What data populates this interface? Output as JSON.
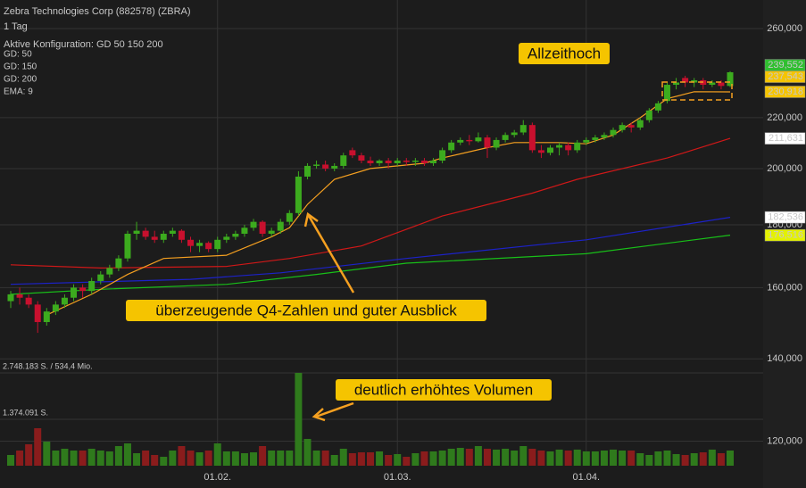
{
  "chart_data": {
    "type": "candlestick",
    "title": "Zebra Technologies Corp (882578) (ZBRA)",
    "interval": "1 Tag",
    "config": "Aktive Konfiguration: GD 50 150 200",
    "log_scale": true,
    "grid": true,
    "up_color": "#3cab1e",
    "down_color": "#c8102e",
    "categories": [
      null,
      null,
      null,
      null,
      null,
      null,
      null,
      null,
      null,
      null,
      null,
      null,
      null,
      null,
      null,
      null,
      null,
      null,
      null,
      null,
      null,
      null,
      null,
      "01.02.",
      null,
      null,
      null,
      null,
      null,
      null,
      null,
      null,
      null,
      null,
      null,
      null,
      null,
      null,
      null,
      null,
      null,
      null,
      null,
      "01.03.",
      null,
      null,
      null,
      null,
      null,
      null,
      null,
      null,
      null,
      null,
      null,
      null,
      null,
      null,
      null,
      null,
      null,
      null,
      null,
      null,
      "01.04.",
      null,
      null,
      null,
      null,
      null,
      null,
      null,
      null,
      null,
      null,
      null,
      null,
      null,
      null,
      null,
      null
    ],
    "open": [
      156,
      158,
      157,
      155,
      150,
      153,
      155,
      157,
      160,
      159,
      162,
      164,
      166,
      169,
      177,
      178,
      176,
      175,
      177,
      178,
      175,
      173,
      174,
      172,
      175,
      176,
      177,
      179,
      181,
      177,
      178,
      181,
      184,
      197,
      201,
      201.5,
      200,
      201,
      207,
      205,
      203,
      202,
      203,
      202,
      203,
      202.5,
      203,
      202,
      203,
      207,
      210,
      211,
      210.5,
      212,
      208,
      211,
      213,
      214,
      217,
      207,
      206,
      208,
      209,
      207,
      210,
      211,
      212,
      213,
      215,
      217,
      216,
      219,
      223,
      227,
      234,
      237,
      235,
      236,
      234,
      235,
      233.5
    ],
    "high": [
      159,
      160,
      158,
      156,
      154,
      156,
      158,
      161,
      161,
      163,
      165,
      167,
      170,
      178,
      181,
      179,
      178,
      178,
      179,
      178.5,
      176,
      175,
      174.5,
      176,
      177,
      178,
      180,
      182,
      181.5,
      179,
      182,
      185,
      199,
      202,
      203,
      203,
      202,
      206,
      208,
      206,
      204.5,
      203.5,
      204,
      204,
      204,
      204,
      204,
      204,
      208,
      211,
      212,
      213,
      214,
      213,
      212,
      214,
      215,
      219,
      218,
      209,
      209,
      210,
      210,
      211,
      212,
      213,
      214,
      216,
      218,
      218,
      220,
      224,
      227,
      235,
      237,
      238,
      237,
      237,
      236,
      236,
      240
    ],
    "low": [
      154,
      155,
      154,
      147,
      149,
      152,
      154,
      156,
      157,
      158,
      161,
      163,
      165,
      168,
      175,
      175,
      174,
      174,
      176,
      174,
      171,
      171,
      171,
      171,
      174,
      175,
      176,
      178,
      176,
      176,
      177,
      180,
      183,
      196,
      200,
      199,
      199,
      200,
      204,
      202,
      201,
      201,
      200,
      201,
      201,
      201,
      201,
      201,
      202,
      206,
      209,
      209,
      210,
      204,
      207,
      210,
      212,
      213,
      206,
      204,
      205,
      205,
      205,
      206,
      209,
      210,
      211,
      212,
      214,
      214,
      215,
      218,
      222,
      226,
      232,
      233,
      233,
      232,
      233,
      232,
      233
    ],
    "close": [
      158,
      157,
      155,
      150,
      153,
      155,
      157,
      160,
      159,
      162,
      164,
      166,
      169,
      177,
      178,
      176,
      175,
      177,
      178,
      175,
      173,
      174,
      172,
      175,
      176,
      177,
      179,
      181,
      177,
      178,
      181,
      184,
      197,
      201,
      201.5,
      200,
      201,
      205,
      205,
      203,
      202,
      203,
      202,
      203,
      202.5,
      203,
      202,
      203,
      207,
      210,
      211,
      210.5,
      212,
      208,
      211,
      213,
      214,
      217,
      207,
      206,
      208,
      209,
      207,
      210,
      211,
      212,
      213,
      215,
      217,
      216,
      219,
      223,
      226,
      234,
      235,
      235,
      236,
      234,
      235,
      233.5,
      239.552
    ],
    "ylim": [
      114.6,
      274.3
    ],
    "yticks": [
      {
        "value": 120,
        "label": "120,000"
      },
      {
        "value": 140,
        "label": "140,000"
      },
      {
        "value": 160,
        "label": "160,000"
      },
      {
        "value": 180,
        "label": "180,000"
      },
      {
        "value": 200,
        "label": "200,000"
      },
      {
        "value": 220,
        "label": "220,000"
      },
      {
        "value": 260,
        "label": "260,000"
      }
    ],
    "volume": [
      317000,
      449000,
      634000,
      1110000,
      713000,
      449000,
      502000,
      449000,
      449000,
      502000,
      449000,
      423000,
      581000,
      661000,
      370000,
      449000,
      317000,
      264000,
      449000,
      581000,
      449000,
      396000,
      449000,
      661000,
      423000,
      423000,
      370000,
      396000,
      581000,
      449000,
      449000,
      449000,
      2748000,
      793000,
      449000,
      449000,
      317000,
      502000,
      370000,
      396000,
      396000,
      423000,
      317000,
      344000,
      264000,
      370000,
      423000,
      423000,
      449000,
      502000,
      528000,
      502000,
      581000,
      502000,
      476000,
      502000,
      449000,
      581000,
      502000,
      449000,
      423000,
      476000,
      449000,
      476000,
      423000,
      423000,
      449000,
      476000,
      449000,
      449000,
      370000,
      317000,
      423000,
      449000,
      344000,
      317000,
      370000,
      396000,
      476000,
      370000,
      449000
    ],
    "y2lim": [
      0,
      3223000
    ],
    "y2ticks": [
      {
        "value": 2748183,
        "label": "2.748.183 S. / 534,4 Mio."
      },
      {
        "value": 1374091,
        "label": "1.374.091 S."
      }
    ],
    "series": [
      {
        "name": "GD: 50",
        "color": "#d01818",
        "x": [
          0,
          10,
          24,
          31,
          39,
          48,
          58,
          63,
          73,
          80
        ],
        "values": [
          167,
          166,
          166.5,
          169,
          173,
          183,
          191,
          196,
          204,
          211.631
        ]
      },
      {
        "name": "GD: 150",
        "color": "#1c22c8",
        "x": [
          0,
          20,
          30,
          44,
          64,
          80
        ],
        "values": [
          161,
          162.5,
          164.5,
          169,
          175,
          182.536
        ]
      },
      {
        "name": "GD: 200",
        "color": "#18c018",
        "x": [
          0,
          10,
          24,
          34,
          44,
          64,
          80
        ],
        "values": [
          158,
          159.5,
          161,
          164,
          167.5,
          170.5,
          176.516
        ]
      },
      {
        "name": "EMA: 9",
        "color": "#f5a020",
        "x": [
          4,
          9,
          13,
          17,
          24,
          29,
          31,
          33,
          36,
          40,
          46,
          48,
          53,
          56,
          61,
          64,
          67,
          70,
          73,
          76,
          80
        ],
        "values": [
          152,
          158,
          164,
          169,
          170,
          176,
          179,
          187,
          196,
          200,
          202,
          204,
          208,
          210,
          210,
          209.5,
          213,
          220,
          228,
          231,
          230.918
        ]
      }
    ],
    "price_markers": [
      {
        "value": 239.552,
        "label": "239,552",
        "color": "#2fbf2f"
      },
      {
        "value": 237.543,
        "label": "237,543",
        "color": "#f5c400"
      },
      {
        "value": 230.918,
        "label": "230,918",
        "color": "#f5c400"
      },
      {
        "value": 211.631,
        "label": "211,631",
        "color": "#ffffff"
      },
      {
        "value": 182.536,
        "label": "182,536",
        "color": "#ffffff"
      },
      {
        "value": 176.516,
        "label": "176,516",
        "color": "#e4f200"
      }
    ],
    "annotations": [
      "Allzeithoch",
      "überzeugende Q4-Zahlen und guter Ausblick",
      "deutlich erhöhtes Volumen"
    ]
  }
}
